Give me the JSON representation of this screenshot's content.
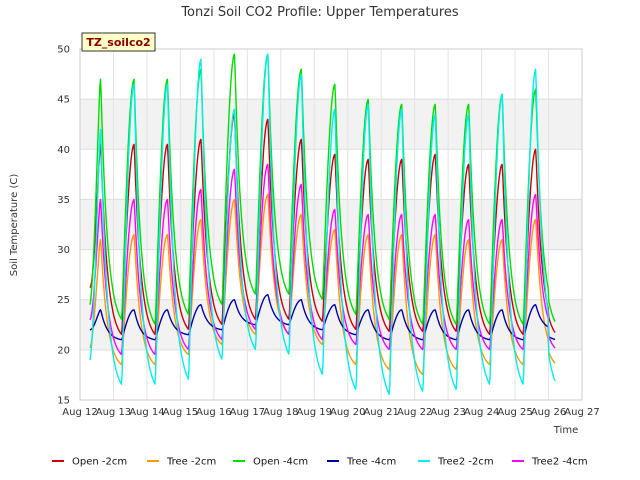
{
  "chart_data": {
    "type": "line",
    "title": "Tonzi Soil CO2 Profile: Upper Temperatures",
    "xlabel": "Time",
    "ylabel": "Soil Temperature (C)",
    "site_tag": "TZ_soilco2",
    "xlim": [
      12,
      27
    ],
    "ylim": [
      15,
      50
    ],
    "x_ticks": [
      {
        "value": 12,
        "label": "Aug 12"
      },
      {
        "value": 13,
        "label": "Aug 13"
      },
      {
        "value": 14,
        "label": "Aug 14"
      },
      {
        "value": 15,
        "label": "Aug 15"
      },
      {
        "value": 16,
        "label": "Aug 16"
      },
      {
        "value": 17,
        "label": "Aug 17"
      },
      {
        "value": 18,
        "label": "Aug 18"
      },
      {
        "value": 19,
        "label": "Aug 19"
      },
      {
        "value": 20,
        "label": "Aug 20"
      },
      {
        "value": 21,
        "label": "Aug 21"
      },
      {
        "value": 22,
        "label": "Aug 22"
      },
      {
        "value": 23,
        "label": "Aug 23"
      },
      {
        "value": 24,
        "label": "Aug 24"
      },
      {
        "value": 25,
        "label": "Aug 25"
      },
      {
        "value": 26,
        "label": "Aug 26"
      },
      {
        "value": 27,
        "label": "Aug 27"
      }
    ],
    "y_ticks": [
      15,
      20,
      25,
      30,
      35,
      40,
      45,
      50
    ],
    "grid": true,
    "legend_position": "bottom",
    "series": [
      {
        "name": "Open -2cm",
        "color": "#cc0000",
        "daily_min": [
          22.5,
          21.5,
          21.5,
          22.0,
          22.5,
          23.0,
          23.0,
          22.8,
          22.0,
          21.8,
          21.8,
          21.8,
          21.5,
          21.5,
          22.0
        ],
        "daily_max": [
          40.5,
          40.5,
          40.5,
          41.0,
          43.5,
          43.0,
          41.0,
          39.5,
          39.0,
          39.0,
          39.5,
          38.5,
          38.5,
          40.0
        ],
        "start": 26.2,
        "end": 26.5
      },
      {
        "name": "Tree -2cm",
        "color": "#ff9900",
        "daily_min": [
          20.2,
          18.5,
          18.5,
          19.5,
          20.5,
          21.5,
          21.5,
          20.5,
          18.5,
          18.0,
          17.5,
          18.0,
          18.5,
          18.5,
          19.5
        ],
        "daily_max": [
          31.0,
          31.5,
          31.5,
          33.0,
          35.0,
          35.5,
          33.5,
          32.0,
          31.5,
          31.5,
          31.5,
          31.0,
          31.0,
          33.0
        ],
        "start": 20.2,
        "end": 22.5
      },
      {
        "name": "Open -4cm",
        "color": "#00dd00",
        "daily_min": [
          24.5,
          23.0,
          22.5,
          23.5,
          24.5,
          25.5,
          25.5,
          25.0,
          23.5,
          23.0,
          22.5,
          22.5,
          22.5,
          22.5,
          23.5
        ],
        "daily_max": [
          47.0,
          47.0,
          47.0,
          48.0,
          49.5,
          49.5,
          48.0,
          46.5,
          45.0,
          44.5,
          44.5,
          44.5,
          45.5,
          46.0
        ],
        "start": 24.5,
        "end": 24.5
      },
      {
        "name": "Tree -4cm",
        "color": "#0000aa",
        "daily_min": [
          21.5,
          21.0,
          21.0,
          21.5,
          22.0,
          22.5,
          22.5,
          22.0,
          21.5,
          21.0,
          21.0,
          21.0,
          21.0,
          21.0,
          22.0
        ],
        "daily_max": [
          24.0,
          24.0,
          24.0,
          24.5,
          25.0,
          25.5,
          25.0,
          24.5,
          24.0,
          24.0,
          24.0,
          24.0,
          24.0,
          24.5
        ],
        "start": 22.0,
        "end": 22.5
      },
      {
        "name": "Tree2 -2cm",
        "color": "#00eeee",
        "daily_min": [
          19.0,
          16.5,
          16.5,
          17.0,
          19.0,
          20.0,
          19.5,
          17.5,
          16.0,
          15.5,
          15.8,
          16.0,
          16.5,
          16.5,
          20.5
        ],
        "daily_max": [
          42.0,
          46.5,
          46.5,
          49.0,
          44.0,
          49.5,
          47.5,
          44.0,
          44.5,
          44.0,
          43.5,
          43.5,
          45.5,
          48.0
        ],
        "start": 19.0,
        "end": 20.5
      },
      {
        "name": "Tree2 -4cm",
        "color": "#ff00ff",
        "daily_min": [
          21.0,
          19.5,
          19.5,
          20.0,
          21.0,
          22.0,
          21.5,
          21.0,
          20.5,
          20.0,
          20.0,
          20.0,
          20.0,
          20.0,
          21.5
        ],
        "daily_max": [
          35.0,
          35.0,
          35.0,
          36.0,
          38.0,
          38.5,
          36.5,
          34.0,
          33.5,
          33.5,
          33.5,
          33.0,
          33.0,
          35.5
        ],
        "start": 23.0,
        "end": 23.5
      }
    ]
  }
}
